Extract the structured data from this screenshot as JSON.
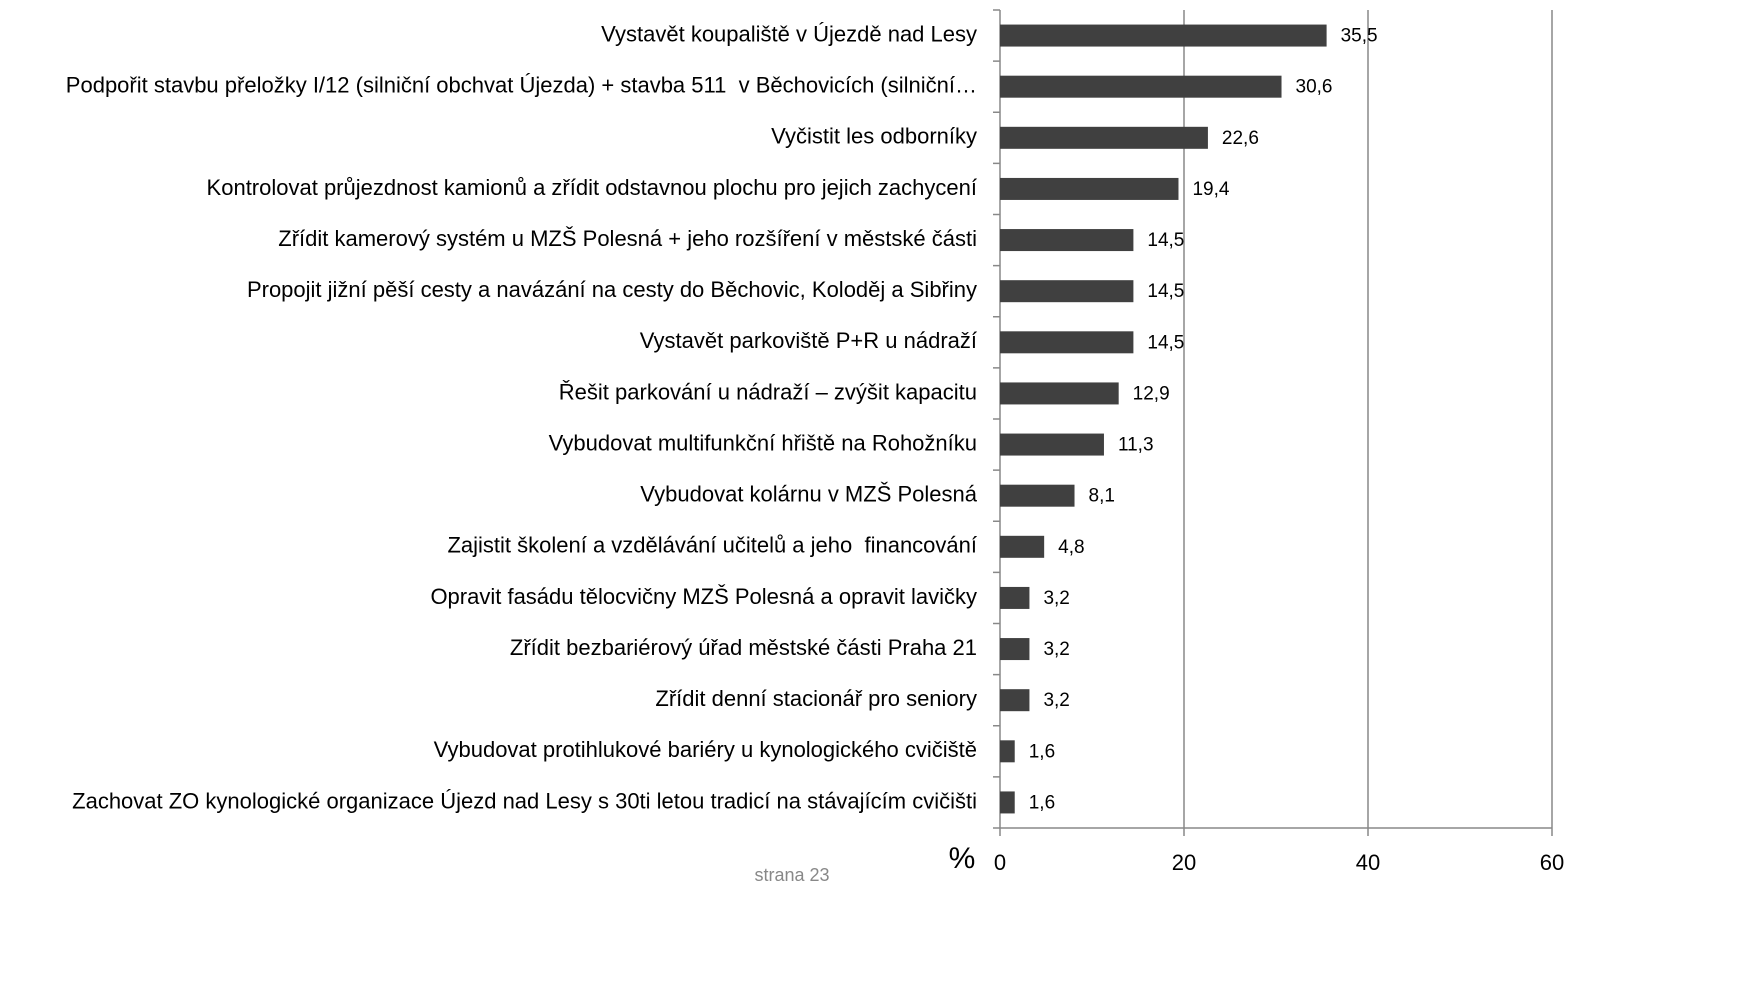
{
  "chart_data": {
    "type": "bar",
    "orientation": "horizontal",
    "categories": [
      "Vystavět koupaliště v Újezdě nad Lesy",
      "Podpořit stavbu přeložky I/12 (silniční obchvat Újezda) + stavba 511  v Běchovicích (silniční…",
      "Vyčistit les odborníky",
      "Kontrolovat průjezdnost kamionů a zřídit odstavnou plochu pro jejich zachycení",
      "Zřídit kamerový systém u MZŠ Polesná + jeho rozšíření v městské části",
      "Propojit jižní pěší cesty a navázání na cesty do Běchovic, Koloděj a Sibřiny",
      "Vystavět parkoviště P+R u nádraží",
      "Řešit parkování u nádraží – zvýšit kapacitu",
      "Vybudovat multifunkční hřiště na Rohožníku",
      "Vybudovat kolárnu v MZŠ Polesná",
      "Zajistit školení a vzdělávání učitelů a jeho  financování",
      "Opravit fasádu tělocvičny MZŠ Polesná a opravit lavičky",
      "Zřídit bezbariérový úřad městské části Praha 21",
      "Zřídit denní stacionář pro seniory",
      "Vybudovat protihlukové bariéry u kynologického cvičiště",
      "Zachovat ZO kynologické organizace Újezd nad Lesy s 30ti letou tradicí na stávajícím cvičišti"
    ],
    "values": [
      35.5,
      30.6,
      22.6,
      19.4,
      14.5,
      14.5,
      14.5,
      12.9,
      11.3,
      8.1,
      4.8,
      3.2,
      3.2,
      3.2,
      1.6,
      1.6
    ],
    "value_labels": [
      "35,5",
      "30,6",
      "22,6",
      "19,4",
      "14,5",
      "14,5",
      "14,5",
      "12,9",
      "11,3",
      "8,1",
      "4,8",
      "3,2",
      "3,2",
      "3,2",
      "1,6",
      "1,6"
    ],
    "color": "#404040",
    "xlabel": "%",
    "xlim": [
      0,
      60
    ],
    "xticks": [
      0,
      20,
      40,
      60
    ],
    "grid": true
  },
  "footer": "strana 23"
}
